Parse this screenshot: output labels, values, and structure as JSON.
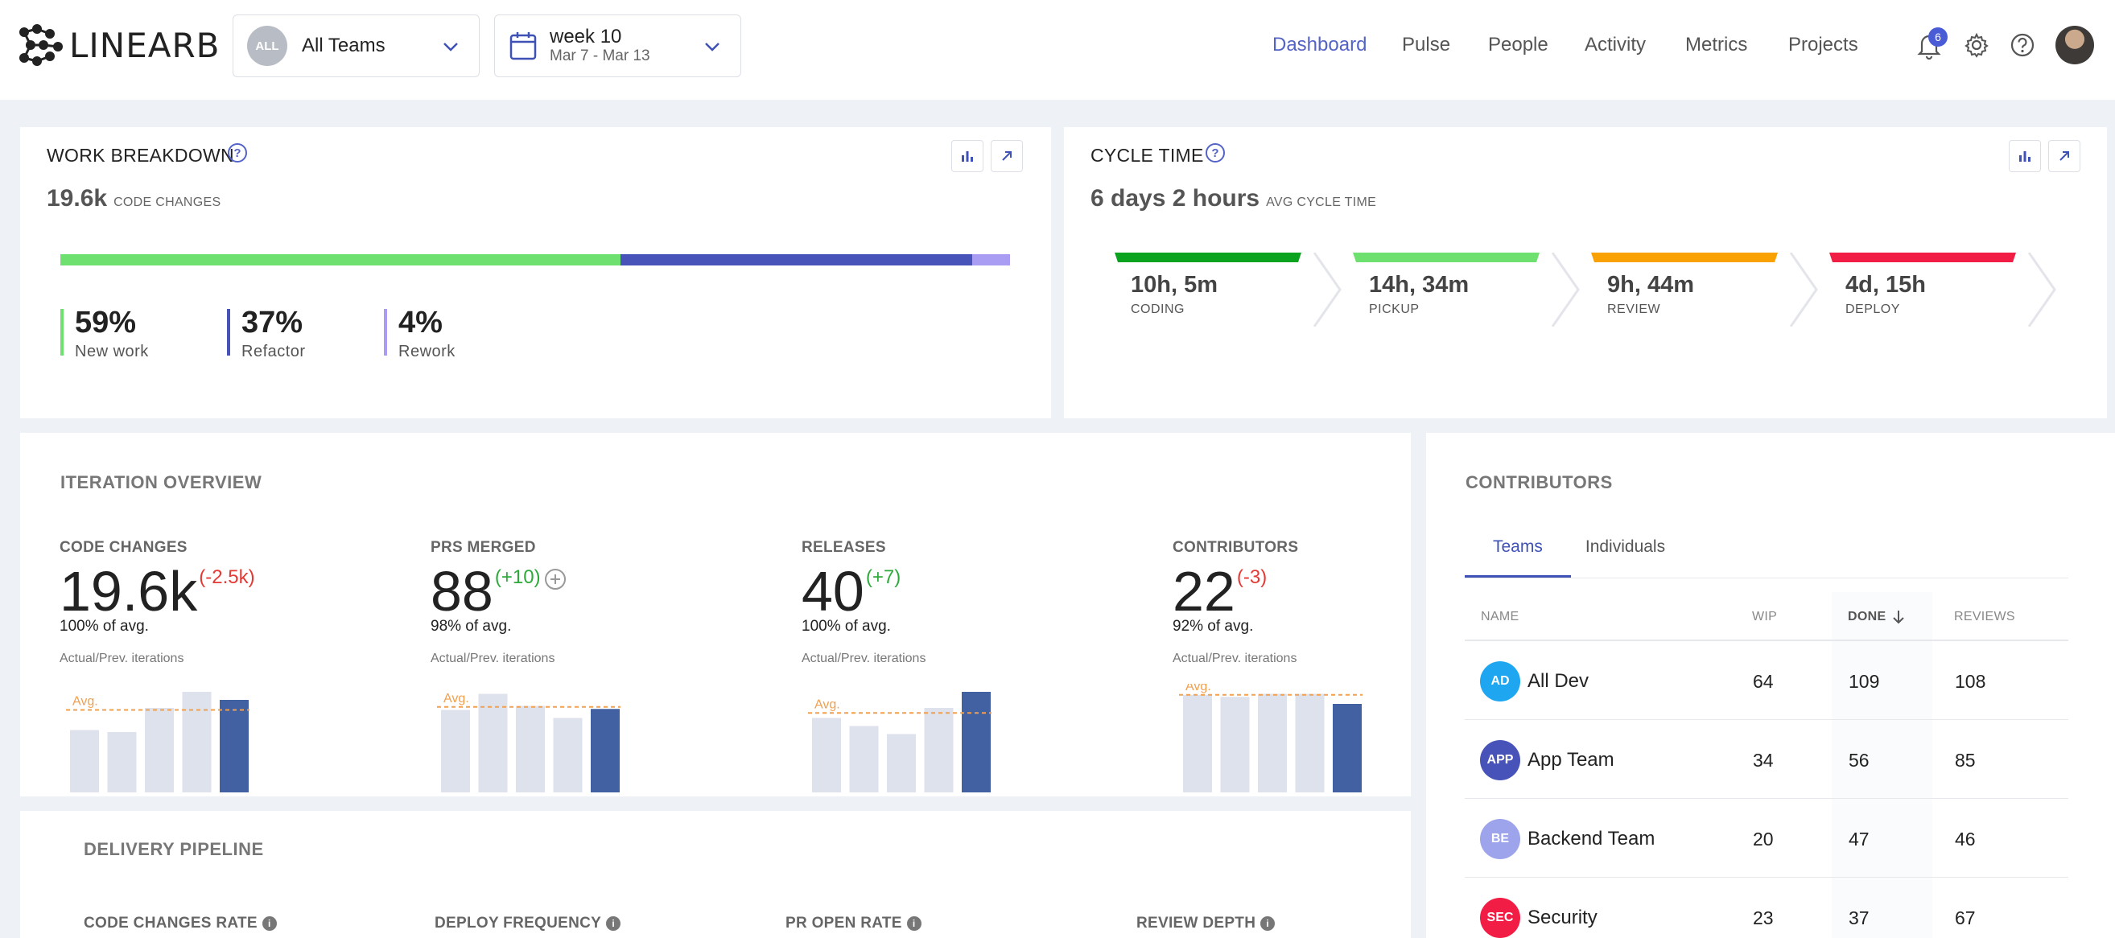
{
  "header": {
    "logo_text": "LINEARB",
    "team_avatar": "ALL",
    "team_select": "All Teams",
    "week_label": "week 10",
    "week_range": "Mar 7 - Mar 13",
    "nav": [
      "Dashboard",
      "Pulse",
      "People",
      "Activity",
      "Metrics",
      "Projects"
    ],
    "notification_count": "6",
    "icons": [
      "bell-icon",
      "gear-icon",
      "help-icon"
    ]
  },
  "work_breakdown": {
    "title": "WORK BREAKDOWN",
    "value": "19.6k",
    "value_label": "CODE CHANGES",
    "segments": [
      {
        "value": "59%",
        "label": "New work",
        "fraction": 0.59,
        "color": "#6ee06f"
      },
      {
        "value": "37%",
        "label": "Refactor",
        "fraction": 0.37,
        "color": "#4753b8"
      },
      {
        "value": "4%",
        "label": "Rework",
        "fraction": 0.04,
        "color": "#a89cf3"
      }
    ]
  },
  "cycle_time": {
    "title": "CYCLE TIME",
    "value": "6 days 2 hours",
    "value_label": "AVG CYCLE TIME",
    "phases": [
      {
        "value": "10h, 5m",
        "label": "CODING",
        "color": "#0aa21e"
      },
      {
        "value": "14h, 34m",
        "label": "PICKUP",
        "color": "#6ee06f"
      },
      {
        "value": "9h, 44m",
        "label": "REVIEW",
        "color": "#f9a100"
      },
      {
        "value": "4d, 15h",
        "label": "DEPLOY",
        "color": "#f11d44"
      }
    ]
  },
  "iteration": {
    "title": "ITERATION OVERVIEW",
    "avg_label": "Avg.",
    "subtitle": "Actual/Prev. iterations",
    "metrics": [
      {
        "name": "CODE CHANGES",
        "value": "19.6k",
        "delta": "(-2.5k)",
        "delta_color": "#e53935",
        "pct": "100% of avg.",
        "bars": [
          0.62,
          0.6,
          0.84,
          1.0,
          0.92
        ],
        "avg": 0.82
      },
      {
        "name": "PRS MERGED",
        "value": "88",
        "delta": "(+10)",
        "delta_color": "#2eaa3c",
        "pct": "98% of avg.",
        "bars": [
          0.82,
          0.98,
          0.86,
          0.74,
          0.83
        ],
        "avg": 0.85
      },
      {
        "name": "RELEASES",
        "value": "40",
        "delta": "(+7)",
        "delta_color": "#2eaa3c",
        "pct": "100% of avg.",
        "bars": [
          0.74,
          0.66,
          0.58,
          0.84,
          1.0
        ],
        "avg": 0.79
      },
      {
        "name": "CONTRIBUTORS",
        "value": "22",
        "delta": "(-3)",
        "delta_color": "#e53935",
        "pct": "92% of avg.",
        "bars": [
          0.97,
          0.95,
          0.98,
          0.98,
          0.88
        ],
        "avg": 0.97
      }
    ]
  },
  "contributors": {
    "title": "CONTRIBUTORS",
    "tabs": [
      "Teams",
      "Individuals"
    ],
    "columns": [
      "NAME",
      "WIP",
      "DONE",
      "REVIEWS"
    ],
    "rows": [
      {
        "abbr": "AD",
        "name": "All Dev",
        "wip": "64",
        "done": "109",
        "reviews": "108",
        "color": "#1ea7f0"
      },
      {
        "abbr": "APP",
        "name": "App Team",
        "wip": "34",
        "done": "56",
        "reviews": "85",
        "color": "#4753b8"
      },
      {
        "abbr": "BE",
        "name": "Backend Team",
        "wip": "20",
        "done": "47",
        "reviews": "46",
        "color": "#9da4ec"
      },
      {
        "abbr": "SEC",
        "name": "Security",
        "wip": "23",
        "done": "37",
        "reviews": "67",
        "color": "#f11d44"
      }
    ]
  },
  "pipeline": {
    "title": "DELIVERY PIPELINE",
    "metrics": [
      "CODE CHANGES RATE",
      "DEPLOY FREQUENCY",
      "PR OPEN RATE",
      "REVIEW DEPTH"
    ]
  }
}
